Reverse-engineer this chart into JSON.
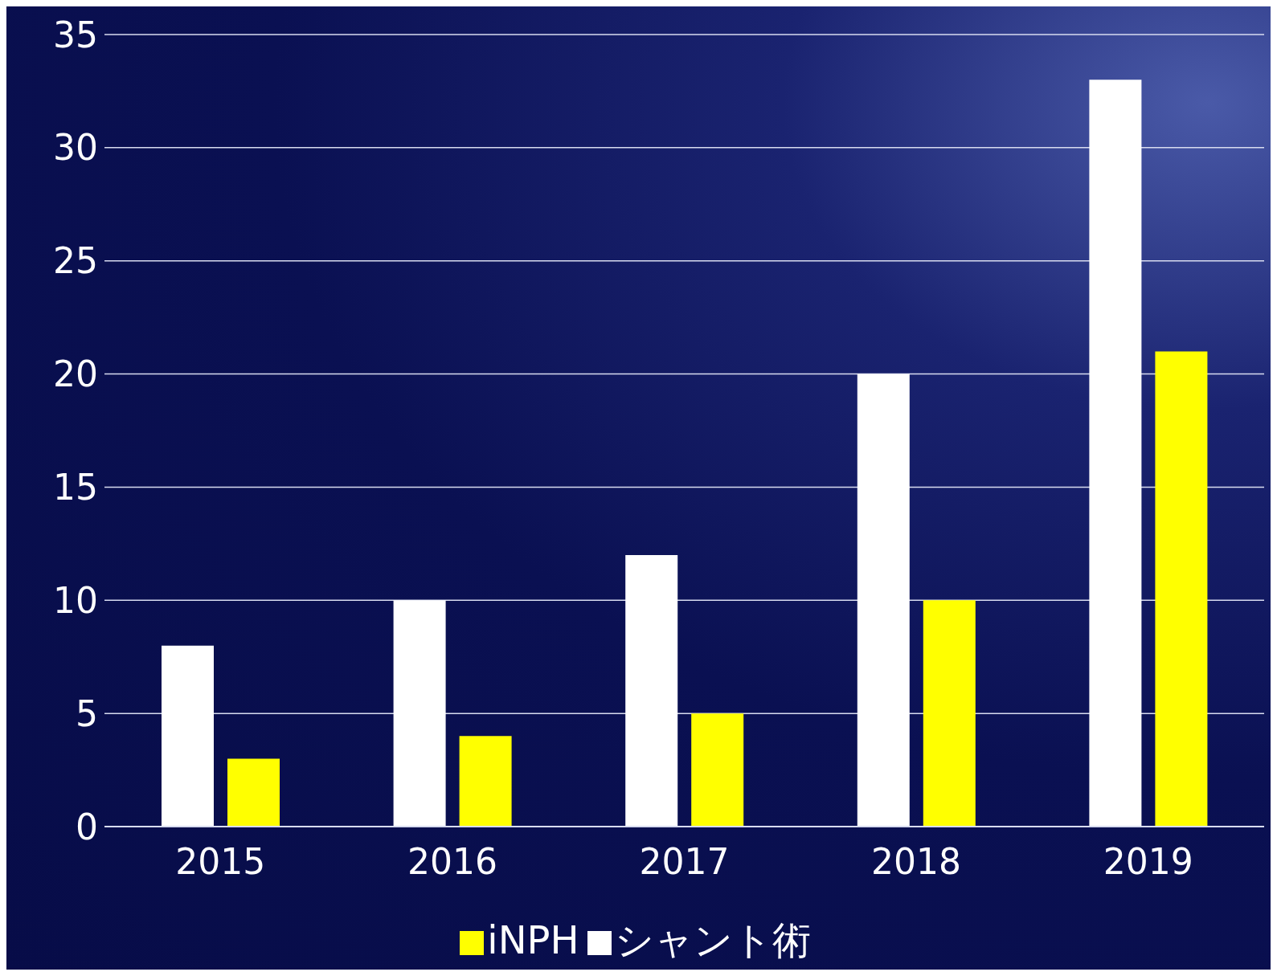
{
  "chart_data": {
    "type": "bar",
    "categories": [
      "2015",
      "2016",
      "2017",
      "2018",
      "2019"
    ],
    "series": [
      {
        "name": "シャント術",
        "color": "#ffffff",
        "values": [
          8,
          10,
          12,
          20,
          33
        ]
      },
      {
        "name": "iNPH",
        "color": "#ffff00",
        "values": [
          3,
          4,
          5,
          10,
          21
        ]
      }
    ],
    "ylim": [
      0,
      35
    ],
    "yticks": [
      0,
      5,
      10,
      15,
      20,
      25,
      30,
      35
    ],
    "grid": "y",
    "legend": "bottom"
  }
}
